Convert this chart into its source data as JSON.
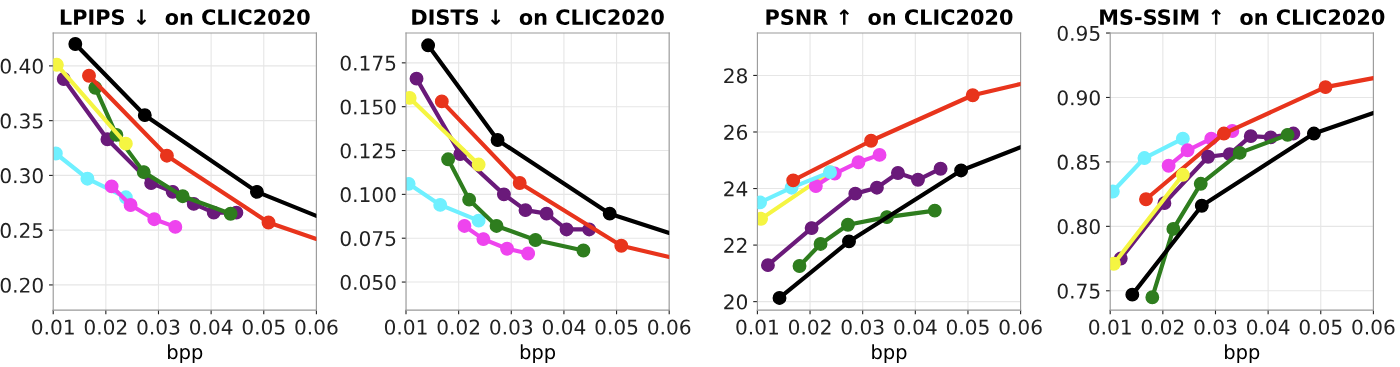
{
  "chart_data": [
    {
      "type": "line",
      "title": "LPIPS ↓  on CLIC2020",
      "xlabel": "bpp",
      "xlim": [
        0.01,
        0.06
      ],
      "xticks": [
        {
          "value": 0.01,
          "label": "0.01"
        },
        {
          "value": 0.02,
          "label": "0.02"
        },
        {
          "value": 0.03,
          "label": "0.03"
        },
        {
          "value": 0.04,
          "label": "0.04"
        },
        {
          "value": 0.05,
          "label": "0.05"
        },
        {
          "value": 0.06,
          "label": "0.06"
        }
      ],
      "ylim": [
        0.177,
        0.43
      ],
      "yticks": [
        {
          "value": 0.2,
          "label": "0.20"
        },
        {
          "value": 0.25,
          "label": "0.25"
        },
        {
          "value": 0.3,
          "label": "0.30"
        },
        {
          "value": 0.35,
          "label": "0.35"
        },
        {
          "value": 0.4,
          "label": "0.40"
        }
      ],
      "grid": true,
      "marker": "circle",
      "line_style": "solid",
      "series": [
        {
          "color": "#6ff0ff",
          "x": [
            0.0105,
            0.0165,
            0.0238
          ],
          "values": [
            0.32,
            0.297,
            0.28
          ]
        },
        {
          "color": "#ee44ee",
          "x": [
            0.0211,
            0.0247,
            0.0292,
            0.0332
          ],
          "values": [
            0.29,
            0.273,
            0.26,
            0.253
          ]
        },
        {
          "color": "#6a1a7a",
          "x": [
            0.012,
            0.0203,
            0.0286,
            0.0327,
            0.0367,
            0.0405,
            0.0448
          ],
          "values": [
            0.388,
            0.333,
            0.293,
            0.285,
            0.274,
            0.266,
            0.266
          ]
        },
        {
          "color": "#2e7d1e",
          "x": [
            0.018,
            0.022,
            0.0272,
            0.0346,
            0.0437
          ],
          "values": [
            0.38,
            0.337,
            0.303,
            0.281,
            0.265
          ]
        },
        {
          "color": "#f5f542",
          "x": [
            0.0107,
            0.0238
          ],
          "values": [
            0.401,
            0.329
          ]
        },
        {
          "color": "#e8341c",
          "x": [
            0.0168,
            0.0316,
            0.0509,
            0.06
          ],
          "values": [
            0.391,
            0.318,
            0.257,
            0.242
          ]
        },
        {
          "color": "#000000",
          "x": [
            0.0142,
            0.0274,
            0.0487,
            0.06
          ],
          "values": [
            0.42,
            0.355,
            0.285,
            0.263
          ]
        }
      ]
    },
    {
      "type": "line",
      "title": "DISTS ↓  on CLIC2020",
      "xlabel": "bpp",
      "xlim": [
        0.01,
        0.06
      ],
      "xticks": [
        {
          "value": 0.01,
          "label": "0.01"
        },
        {
          "value": 0.02,
          "label": "0.02"
        },
        {
          "value": 0.03,
          "label": "0.03"
        },
        {
          "value": 0.04,
          "label": "0.04"
        },
        {
          "value": 0.05,
          "label": "0.05"
        },
        {
          "value": 0.06,
          "label": "0.06"
        }
      ],
      "ylim": [
        0.034,
        0.192
      ],
      "yticks": [
        {
          "value": 0.05,
          "label": "0.050"
        },
        {
          "value": 0.075,
          "label": "0.075"
        },
        {
          "value": 0.1,
          "label": "0.100"
        },
        {
          "value": 0.125,
          "label": "0.125"
        },
        {
          "value": 0.15,
          "label": "0.150"
        },
        {
          "value": 0.175,
          "label": "0.175"
        }
      ],
      "grid": true,
      "marker": "circle",
      "line_style": "solid",
      "series": [
        {
          "color": "#6ff0ff",
          "x": [
            0.0105,
            0.0165,
            0.0238
          ],
          "values": [
            0.106,
            0.094,
            0.085
          ]
        },
        {
          "color": "#ee44ee",
          "x": [
            0.0211,
            0.0247,
            0.0292,
            0.0332
          ],
          "values": [
            0.082,
            0.0745,
            0.069,
            0.0663
          ]
        },
        {
          "color": "#6a1a7a",
          "x": [
            0.012,
            0.0203,
            0.0286,
            0.0327,
            0.0367,
            0.0405,
            0.0448
          ],
          "values": [
            0.166,
            0.123,
            0.1,
            0.091,
            0.089,
            0.08,
            0.08
          ]
        },
        {
          "color": "#2e7d1e",
          "x": [
            0.018,
            0.022,
            0.0272,
            0.0346,
            0.0437
          ],
          "values": [
            0.12,
            0.097,
            0.082,
            0.074,
            0.068
          ]
        },
        {
          "color": "#f5f542",
          "x": [
            0.0107,
            0.0238
          ],
          "values": [
            0.155,
            0.117
          ]
        },
        {
          "color": "#e8341c",
          "x": [
            0.0168,
            0.0316,
            0.0509,
            0.06
          ],
          "values": [
            0.153,
            0.1065,
            0.0707,
            0.0643
          ]
        },
        {
          "color": "#000000",
          "x": [
            0.0142,
            0.0274,
            0.0487,
            0.06
          ],
          "values": [
            0.185,
            0.131,
            0.089,
            0.078
          ]
        }
      ]
    },
    {
      "type": "line",
      "title": "PSNR ↑  on CLIC2020",
      "xlabel": "bpp",
      "xlim": [
        0.01,
        0.06
      ],
      "xticks": [
        {
          "value": 0.01,
          "label": "0.01"
        },
        {
          "value": 0.02,
          "label": "0.02"
        },
        {
          "value": 0.03,
          "label": "0.03"
        },
        {
          "value": 0.04,
          "label": "0.04"
        },
        {
          "value": 0.05,
          "label": "0.05"
        },
        {
          "value": 0.06,
          "label": "0.06"
        }
      ],
      "ylim": [
        19.7,
        29.5
      ],
      "yticks": [
        20,
        22,
        24,
        26,
        28
      ],
      "grid": true,
      "marker": "circle",
      "line_style": "solid",
      "series": [
        {
          "color": "#f5f542",
          "x": [
            0.0107,
            0.0238
          ],
          "values": [
            22.93,
            24.58
          ]
        },
        {
          "color": "#ee44ee",
          "x": [
            0.0211,
            0.0247,
            0.0292,
            0.0332
          ],
          "values": [
            24.09,
            24.53,
            24.93,
            25.19
          ]
        },
        {
          "color": "#6ff0ff",
          "x": [
            0.0105,
            0.0165,
            0.0238
          ],
          "values": [
            23.51,
            24.03,
            24.58
          ]
        },
        {
          "color": "#6a1a7a",
          "x": [
            0.012,
            0.0203,
            0.0286,
            0.0327,
            0.0367,
            0.0405,
            0.0448
          ],
          "values": [
            21.29,
            22.6,
            23.82,
            24.03,
            24.55,
            24.31,
            24.7
          ]
        },
        {
          "color": "#2e7d1e",
          "x": [
            0.018,
            0.022,
            0.0272,
            0.0346,
            0.0437
          ],
          "values": [
            21.26,
            22.04,
            22.72,
            22.99,
            23.22
          ]
        },
        {
          "color": "#e8341c",
          "x": [
            0.0168,
            0.0316,
            0.0509,
            0.06
          ],
          "values": [
            24.29,
            25.69,
            27.3,
            27.7
          ]
        },
        {
          "color": "#000000",
          "x": [
            0.0142,
            0.0274,
            0.0487,
            0.06
          ],
          "values": [
            20.13,
            22.13,
            24.64,
            25.46
          ]
        }
      ]
    },
    {
      "type": "line",
      "title": "MS-SSIM ↑  on CLIC2020",
      "xlabel": "bpp",
      "xlim": [
        0.01,
        0.06
      ],
      "xticks": [
        {
          "value": 0.01,
          "label": "0.01"
        },
        {
          "value": 0.02,
          "label": "0.02"
        },
        {
          "value": 0.03,
          "label": "0.03"
        },
        {
          "value": 0.04,
          "label": "0.04"
        },
        {
          "value": 0.05,
          "label": "0.05"
        },
        {
          "value": 0.06,
          "label": "0.06"
        }
      ],
      "ylim": [
        0.735,
        0.95
      ],
      "yticks": [
        0.75,
        {
          "value": 0.8,
          "label": "0.80"
        },
        0.85,
        {
          "value": 0.9,
          "label": "0.90"
        },
        0.95
      ],
      "grid": true,
      "marker": "circle",
      "line_style": "solid",
      "series": [
        {
          "color": "#6ff0ff",
          "x": [
            0.0105,
            0.0165,
            0.0238
          ],
          "values": [
            0.827,
            0.853,
            0.868
          ]
        },
        {
          "color": "#ee44ee",
          "x": [
            0.0211,
            0.0247,
            0.0292,
            0.0332
          ],
          "values": [
            0.847,
            0.859,
            0.868,
            0.874
          ]
        },
        {
          "color": "#e8341c",
          "x": [
            0.0168,
            0.0316,
            0.0509,
            0.06
          ],
          "values": [
            0.821,
            0.872,
            0.908,
            0.915
          ]
        },
        {
          "color": "#6a1a7a",
          "x": [
            0.012,
            0.0203,
            0.0286,
            0.0327,
            0.0367,
            0.0405,
            0.0448
          ],
          "values": [
            0.775,
            0.818,
            0.854,
            0.856,
            0.87,
            0.869,
            0.872
          ]
        },
        {
          "color": "#f5f542",
          "x": [
            0.0107,
            0.0238
          ],
          "values": [
            0.771,
            0.84
          ]
        },
        {
          "color": "#2e7d1e",
          "x": [
            0.018,
            0.022,
            0.0272,
            0.0346,
            0.0437
          ],
          "values": [
            0.745,
            0.798,
            0.833,
            0.857,
            0.871
          ]
        },
        {
          "color": "#000000",
          "x": [
            0.0142,
            0.0274,
            0.0487,
            0.06
          ],
          "values": [
            0.747,
            0.816,
            0.872,
            0.888
          ]
        }
      ]
    }
  ]
}
